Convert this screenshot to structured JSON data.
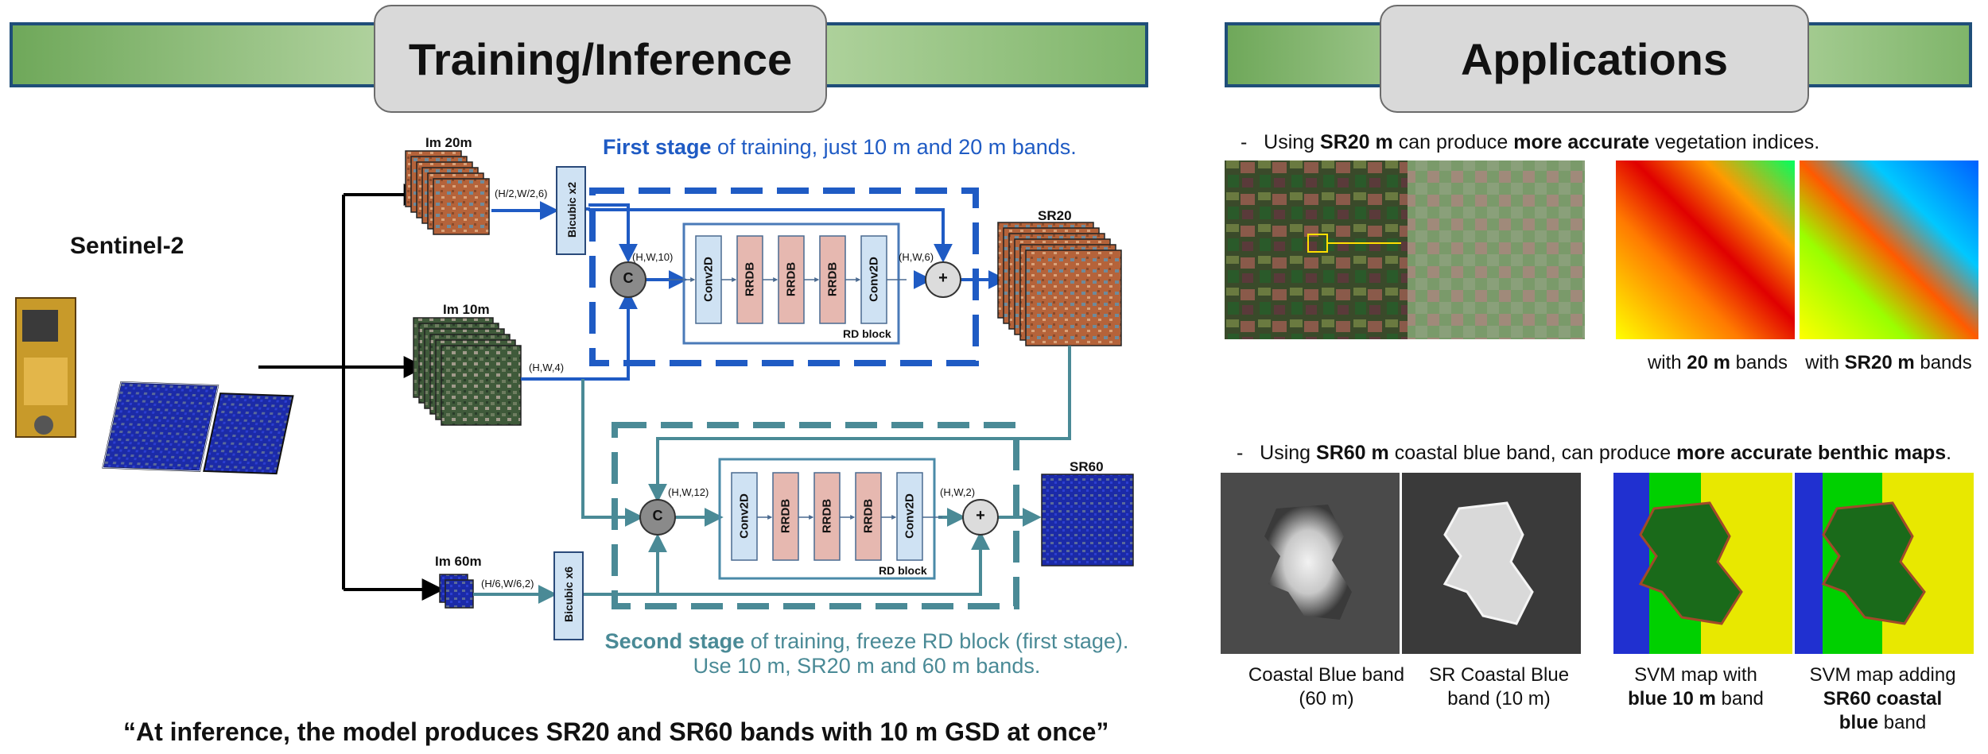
{
  "left_banner": {
    "title": "Training/Inference"
  },
  "right_banner": {
    "title": "Applications"
  },
  "satellite": {
    "label": "Sentinel-2"
  },
  "inputs": {
    "im20": "Im 20m",
    "im10": "Im 10m",
    "im60": "Im 60m",
    "dim20": "(H/2,W/2,6)",
    "dim10": "(H,W,4)",
    "dim60": "(H/6,W/6,2)"
  },
  "bicubic": {
    "x2": "Bicubic x2",
    "x6": "Bicubic x6"
  },
  "stage1": {
    "bold": "First stage",
    "rest": " of training, just 10 m and 20 m bands.",
    "concat_dim": "(H,W,10)",
    "sum_dim": "(H,W,6)",
    "output": "SR20"
  },
  "stage2": {
    "bold": "Second stage",
    "rest": " of training, freeze RD block (first stage).",
    "line2": "Use 10 m, SR20 m  and 60 m bands.",
    "concat_dim": "(H,W,12)",
    "sum_dim": "(H,W,2)",
    "output": "SR60"
  },
  "rd_block": {
    "label": "RD block",
    "layers": [
      "Conv2D",
      "RRDB",
      "RRDB",
      "RRDB",
      "Conv2D"
    ],
    "concat_symbol": "C",
    "sum_symbol": "+"
  },
  "quote": "“At inference, the model produces SR20 and SR60 bands with 10 m GSD at once”",
  "app1": {
    "dash": "-",
    "pre": "Using ",
    "b1": "SR20 m",
    "mid": " can produce ",
    "b2": "more accurate",
    "post": " vegetation indices.",
    "cap1_pre": "with ",
    "cap1_b": "20 m",
    "cap1_post": " bands",
    "cap2_pre": "with ",
    "cap2_b": "SR20 m",
    "cap2_post": " bands"
  },
  "app2": {
    "dash": "-",
    "pre": "Using ",
    "b1": "SR60 m",
    "mid": " coastal blue band, can produce ",
    "b2": "more accurate benthic maps",
    "post": ".",
    "cap1_l1": "Coastal Blue band",
    "cap1_l2": "(60 m)",
    "cap2_l1": "SR Coastal Blue",
    "cap2_l2": "band (10 m)",
    "cap3_l1": "SVM map with",
    "cap3_l2": "blue 10 m",
    "cap3_l2b": " band",
    "cap4_l1": "SVM map adding",
    "cap4_l2": "SR60 coastal",
    "cap4_l3": "blue",
    "cap4_l3b": "  band"
  },
  "colors": {
    "stage1_blue": "#1f5bc4",
    "stage2_teal": "#4a8a96",
    "conv_fill": "#cfe2f3",
    "rrdb_fill": "#e6b8b0",
    "banner_border": "#1f4e79"
  }
}
